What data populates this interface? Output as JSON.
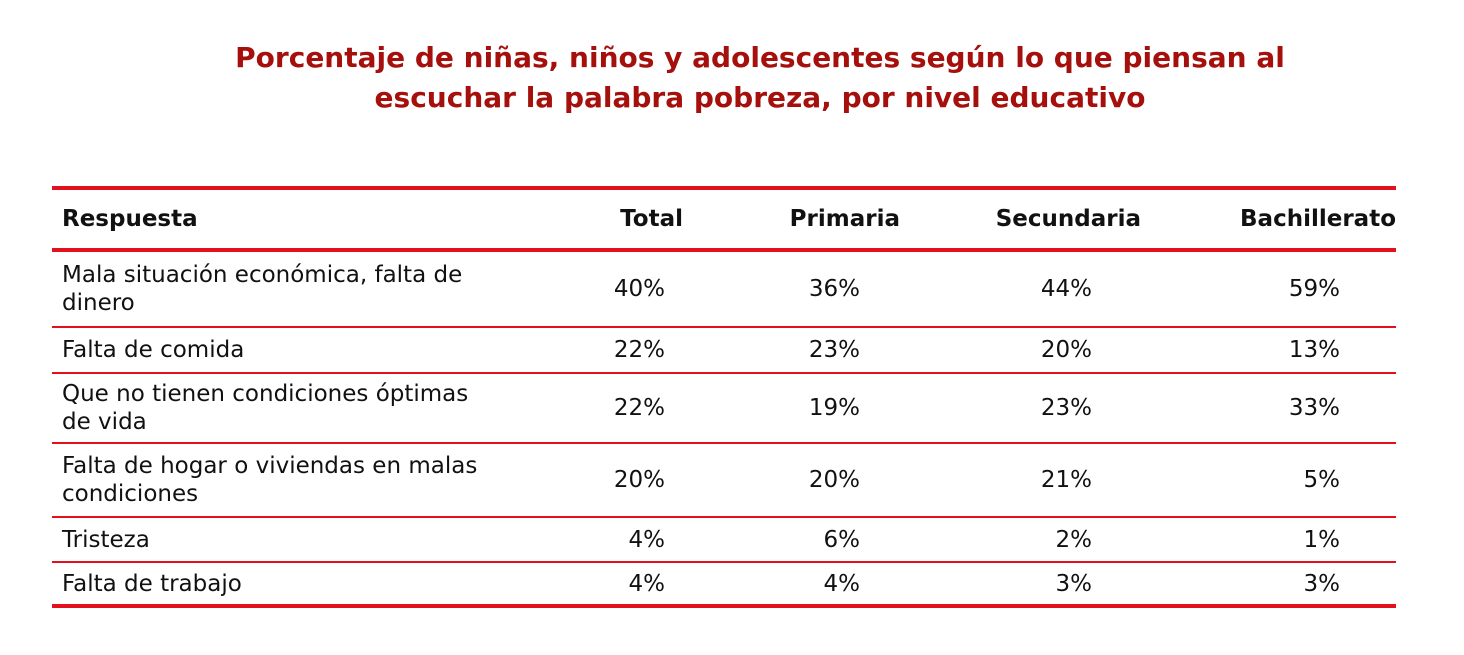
{
  "title_line1": "Porcentaje de niñas, niños y adolescentes según lo que piensan al",
  "title_line2": "escuchar la palabra pobreza, por nivel educativo",
  "headers": [
    "Respuesta",
    "Total",
    "Primaria",
    "Secundaria",
    "Bachillerato"
  ],
  "rows": [
    {
      "label": "Mala situación económica, falta de dinero",
      "values": [
        "40%",
        "36%",
        "44%",
        "59%"
      ]
    },
    {
      "label": "Falta de comida",
      "values": [
        "22%",
        "23%",
        "20%",
        "13%"
      ]
    },
    {
      "label": "Que no tienen condiciones óptimas de vida",
      "values": [
        "22%",
        "19%",
        "23%",
        "33%"
      ]
    },
    {
      "label": "Falta de hogar o viviendas en malas condiciones",
      "values": [
        "20%",
        "20%",
        "21%",
        "5%"
      ]
    },
    {
      "label": "Tristeza",
      "values": [
        "4%",
        "6%",
        "2%",
        "1%"
      ]
    },
    {
      "label": "Falta de trabajo",
      "values": [
        "4%",
        "4%",
        "3%",
        "3%"
      ]
    }
  ],
  "colors": {
    "title": "#a50f0c",
    "rule": "#e3101d"
  }
}
